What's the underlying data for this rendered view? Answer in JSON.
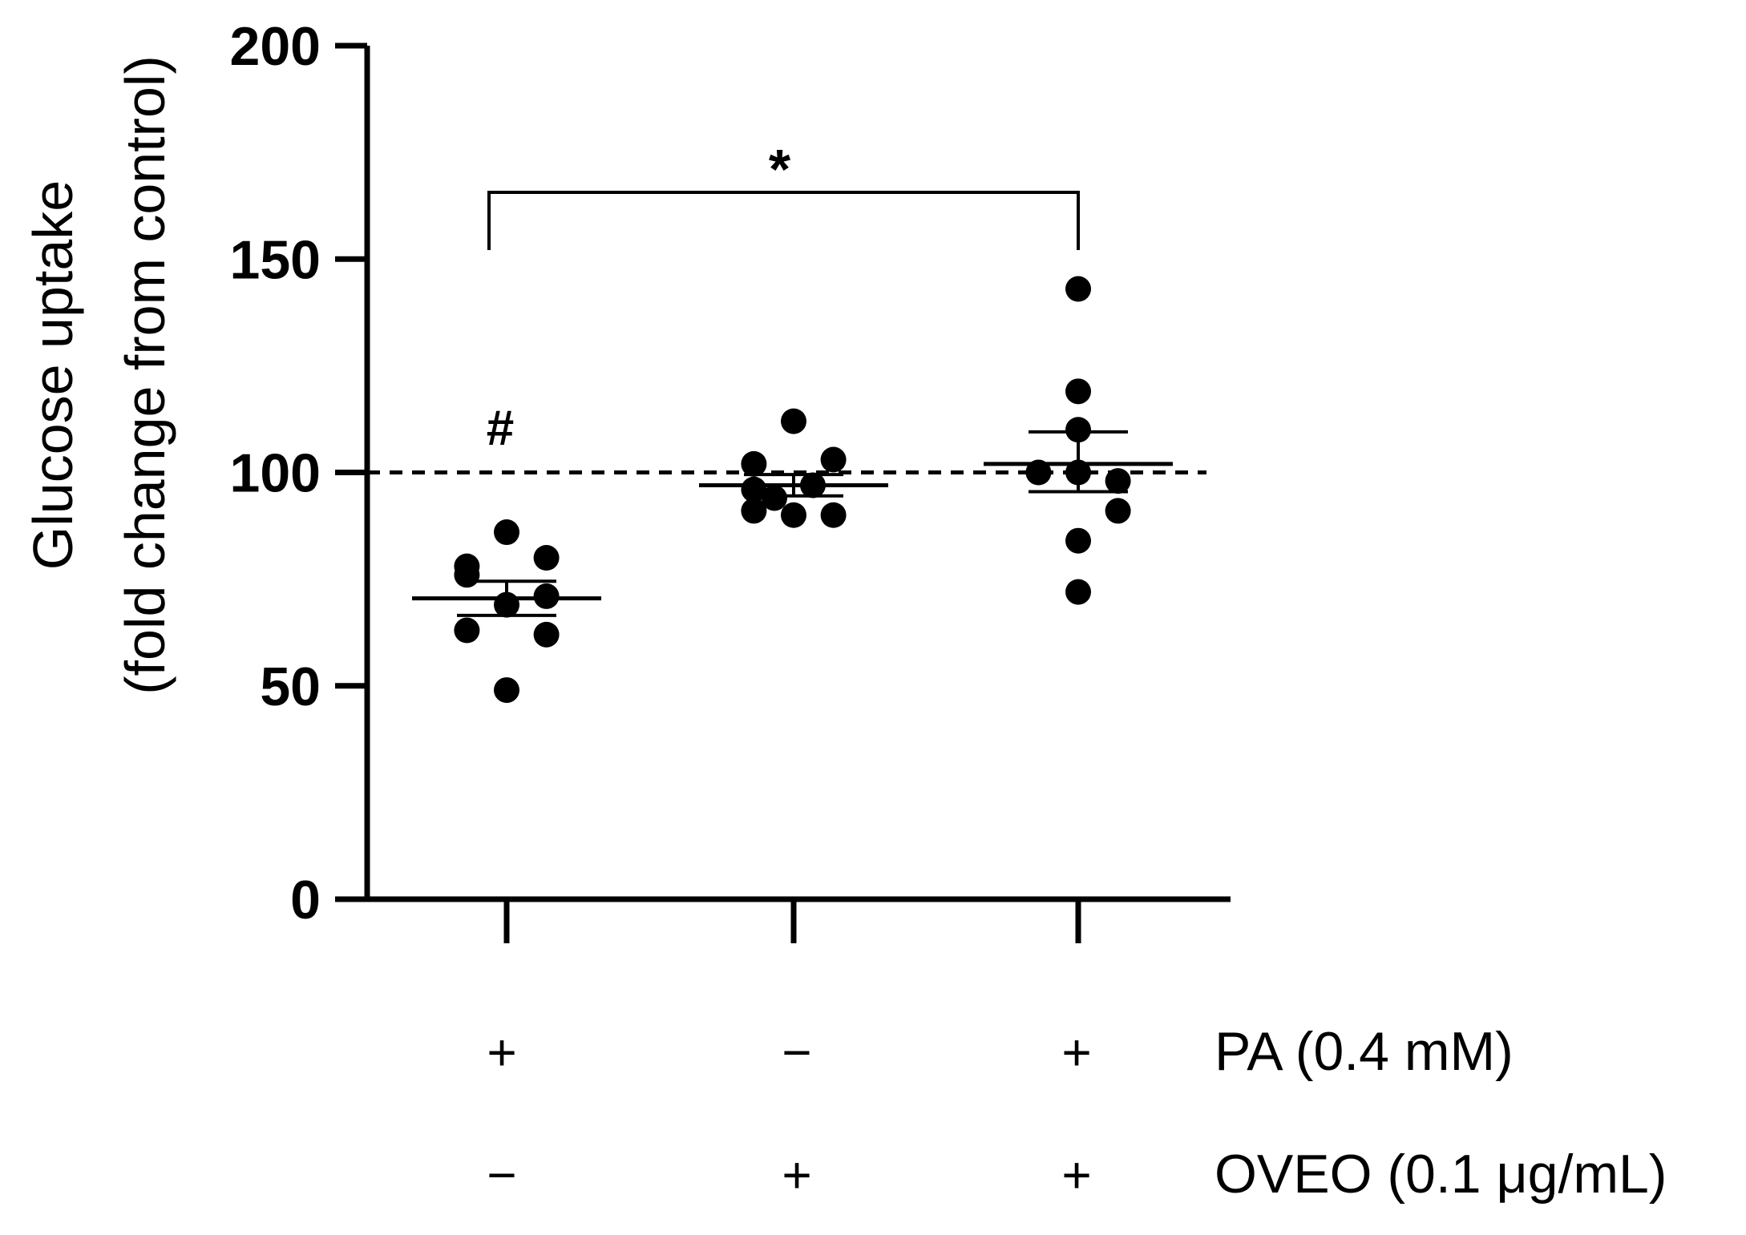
{
  "chart_data": {
    "type": "scatter",
    "title": "",
    "ylabel_line1": "Glucose uptake",
    "ylabel_line2": "(fold change from control)",
    "ylim": [
      0,
      200
    ],
    "yticks": [
      0,
      50,
      100,
      150,
      200
    ],
    "ytick_labels": [
      "0",
      "50",
      "100",
      "150",
      "200"
    ],
    "reference_line": 100,
    "groups": [
      {
        "pa": "+",
        "oveo": "−",
        "points": [
          86,
          78,
          80,
          76,
          69,
          71,
          63,
          62,
          49
        ],
        "mean": 70.5,
        "sem_upper": 74.5,
        "sem_lower": 66.5,
        "annotation": "#"
      },
      {
        "pa": "−",
        "oveo": "+",
        "points": [
          112,
          102,
          103,
          96,
          94,
          97,
          91,
          90,
          90
        ],
        "mean": 97,
        "sem_upper": 99.5,
        "sem_lower": 94.5
      },
      {
        "pa": "+",
        "oveo": "+",
        "points": [
          143,
          119,
          110,
          100,
          100,
          98,
          91,
          84,
          72
        ],
        "mean": 102,
        "sem_upper": 109.5,
        "sem_lower": 95.5
      }
    ],
    "treatment_labels": [
      "PA (0.4 mM)",
      "OVEO (0.1 μg/mL)"
    ],
    "significance": {
      "from_group": 0,
      "to_group": 2,
      "label": "*"
    },
    "colors": {
      "points": "#000000",
      "axis": "#000000"
    }
  }
}
